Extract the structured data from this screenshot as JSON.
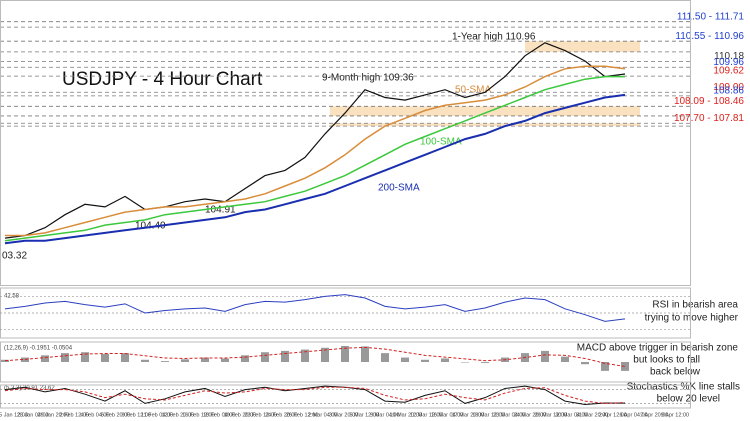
{
  "chart_data": {
    "type": "line",
    "title": "USDJPY - 4 Hour Chart",
    "ylim": [
      101.6,
      112.35
    ],
    "series": [
      {
        "name": "Price",
        "color": "#111111",
        "values": [
          103.4,
          103.5,
          103.8,
          104.3,
          104.7,
          104.6,
          105.0,
          104.5,
          104.6,
          104.8,
          104.9,
          104.8,
          105.3,
          105.8,
          106.0,
          106.5,
          107.4,
          108.2,
          109.1,
          108.8,
          108.7,
          108.9,
          109.1,
          108.8,
          109.0,
          109.6,
          110.4,
          110.9,
          110.6,
          110.2,
          109.6,
          109.7
        ]
      },
      {
        "name": "50-SMA",
        "color": "#d98c3a",
        "values": [
          103.5,
          103.5,
          103.6,
          103.8,
          104.0,
          104.2,
          104.4,
          104.5,
          104.6,
          104.6,
          104.7,
          104.8,
          104.9,
          105.1,
          105.4,
          105.7,
          106.1,
          106.6,
          107.2,
          107.7,
          108.0,
          108.3,
          108.5,
          108.6,
          108.7,
          108.9,
          109.2,
          109.6,
          109.9,
          110.0,
          110.0,
          109.9
        ]
      },
      {
        "name": "100-SMA",
        "color": "#3cc83c",
        "values": [
          103.3,
          103.4,
          103.5,
          103.6,
          103.7,
          103.9,
          104.0,
          104.1,
          104.3,
          104.4,
          104.5,
          104.6,
          104.7,
          104.8,
          105.0,
          105.2,
          105.5,
          105.8,
          106.2,
          106.6,
          107.0,
          107.3,
          107.6,
          107.9,
          108.2,
          108.5,
          108.8,
          109.1,
          109.3,
          109.5,
          109.6,
          109.6
        ]
      },
      {
        "name": "200-SMA",
        "color": "#1a2fb0",
        "values": [
          103.2,
          103.3,
          103.3,
          103.4,
          103.5,
          103.6,
          103.7,
          103.8,
          103.9,
          104.0,
          104.1,
          104.2,
          104.4,
          104.5,
          104.7,
          104.9,
          105.1,
          105.4,
          105.7,
          106.0,
          106.3,
          106.6,
          106.9,
          107.2,
          107.4,
          107.7,
          107.9,
          108.2,
          108.4,
          108.6,
          108.8,
          108.9
        ]
      }
    ],
    "levels": [
      {
        "value": 111.71,
        "color": "#1f3fd1"
      },
      {
        "value": 111.5,
        "color": "#1f3fd1"
      },
      {
        "value": 110.96,
        "color": "#1f3fd1"
      },
      {
        "value": 110.55,
        "color": "#1f3fd1"
      },
      {
        "value": 110.18,
        "color": "#333333"
      },
      {
        "value": 109.96,
        "color": "#1f3fd1"
      },
      {
        "value": 109.62,
        "color": "#e0201b"
      },
      {
        "value": 109.0,
        "color": "#e0201b"
      },
      {
        "value": 108.86,
        "color": "#1f3fd1"
      },
      {
        "value": 108.46,
        "color": "#e0201b"
      },
      {
        "value": 108.09,
        "color": "#e0201b"
      },
      {
        "value": 107.81,
        "color": "#e0201b"
      },
      {
        "value": 107.7,
        "color": "#e0201b"
      }
    ],
    "level_labels": [
      {
        "text": "111.50 - 111.71",
        "level": 0,
        "color": "#1f3fd1"
      },
      {
        "text": "110.55 - 110.96",
        "level": 2,
        "color": "#1f3fd1"
      },
      {
        "text": "110.18",
        "level": 4,
        "color": "#333333"
      },
      {
        "text": "109.96",
        "level": 5,
        "color": "#1f3fd1"
      },
      {
        "text": "109.62",
        "level": 6,
        "color": "#e0201b"
      },
      {
        "text": "109.00",
        "level": 7,
        "color": "#e0201b"
      },
      {
        "text": "108.86",
        "level": 8,
        "color": "#1f3fd1"
      },
      {
        "text": "108.09 - 108.46",
        "level": 9,
        "color": "#e0201b"
      },
      {
        "text": "107.70 - 107.81",
        "level": 11,
        "color": "#e0201b"
      }
    ],
    "zones": [
      {
        "low": 110.55,
        "high": 110.96,
        "color": "#f9d9b0"
      },
      {
        "low": 108.09,
        "high": 108.46,
        "color": "#f9d9b0"
      },
      {
        "low": 107.7,
        "high": 107.81,
        "color": "#f9d9b0"
      }
    ],
    "annotations": [
      "1-Year high 110.96",
      "9-Month high 109.36",
      "50-SMA",
      "100-SMA",
      "200-SMA",
      "104.91",
      "104.40",
      "03.32"
    ],
    "rsi": {
      "header": "42.58",
      "ylim": [
        20,
        80
      ],
      "levels": [
        30,
        50,
        70
      ],
      "color": "#2b3fc0",
      "values": [
        55,
        58,
        62,
        64,
        60,
        57,
        61,
        50,
        53,
        55,
        56,
        52,
        60,
        64,
        63,
        66,
        70,
        72,
        68,
        58,
        55,
        57,
        60,
        52,
        56,
        63,
        68,
        66,
        55,
        48,
        40,
        43
      ],
      "note": [
        "RSI in bearish area",
        "trying to move higher"
      ]
    },
    "macd": {
      "header": "(12,26,9) -0.1951 -0.0504",
      "ylim": [
        -0.45,
        0.45
      ],
      "color": "#999999",
      "signal_color": "#d62020",
      "values": [
        0.05,
        0.1,
        0.15,
        0.2,
        0.22,
        0.18,
        0.2,
        0.05,
        0.02,
        0.06,
        0.1,
        0.08,
        0.15,
        0.22,
        0.25,
        0.28,
        0.32,
        0.36,
        0.35,
        0.2,
        0.1,
        0.05,
        0.08,
        0.0,
        -0.02,
        0.1,
        0.2,
        0.25,
        0.12,
        -0.05,
        -0.2,
        -0.2
      ],
      "signal": [
        0.03,
        0.06,
        0.1,
        0.14,
        0.18,
        0.19,
        0.19,
        0.14,
        0.09,
        0.08,
        0.09,
        0.09,
        0.11,
        0.15,
        0.19,
        0.23,
        0.27,
        0.31,
        0.33,
        0.29,
        0.22,
        0.15,
        0.11,
        0.07,
        0.03,
        0.05,
        0.1,
        0.16,
        0.15,
        0.08,
        -0.03,
        -0.1
      ],
      "note": [
        "MACD above trigger in bearish zone",
        "but looks to fall",
        "back below"
      ]
    },
    "stochastic": {
      "header": "(5,3,3) 20.91 23.62",
      "ylim": [
        0,
        100
      ],
      "levels": [
        20,
        80
      ],
      "k_color": "#111111",
      "d_color": "#d62020",
      "k": [
        80,
        90,
        70,
        85,
        60,
        30,
        75,
        20,
        40,
        70,
        85,
        50,
        80,
        90,
        75,
        85,
        95,
        90,
        80,
        30,
        25,
        55,
        75,
        20,
        45,
        85,
        95,
        80,
        30,
        15,
        22,
        21
      ],
      "d": [
        75,
        85,
        80,
        80,
        70,
        45,
        60,
        40,
        35,
        55,
        75,
        65,
        70,
        85,
        80,
        80,
        90,
        90,
        85,
        55,
        35,
        40,
        60,
        45,
        35,
        65,
        85,
        88,
        55,
        30,
        20,
        24
      ],
      "note": [
        "Stochastics %K line stalls",
        "below 20 level"
      ]
    },
    "x_labels": [
      "25 Jan 12:00",
      "28 Jan 04:00",
      "29 Jan 20:00",
      "2 Feb 12:00",
      "4 Feb 04:00",
      "5 Feb 20:00",
      "9 Feb 12:00",
      "11 Feb 04:00",
      "12 Feb 20:00",
      "16 Feb 12:00",
      "18 Feb 04:00",
      "19 Feb 20:00",
      "23 Feb 12:00",
      "24 Feb 20:00",
      "26 Feb 12:00",
      "2 Mar 04:00",
      "3 Mar 20:00",
      "5 Mar 12:00",
      "9 Mar 04:00",
      "10 Mar 20:00",
      "12 Mar 12:00",
      "16 Mar 04:00",
      "17 Mar 20:00",
      "19 Mar 12:00",
      "23 Mar 04:00",
      "24 Mar 20:00",
      "26 Mar 12:00",
      "30 Mar 04:00",
      "31 Mar 20:00",
      "2 Apr 12:00",
      "6 Apr 04:00",
      "7 Apr 20:00",
      "9 Apr 12:00"
    ]
  }
}
